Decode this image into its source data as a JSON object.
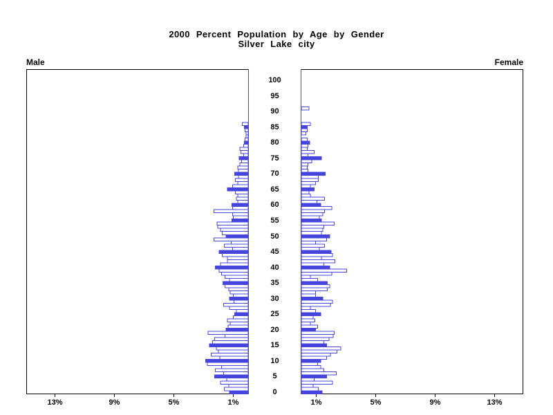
{
  "title": {
    "line1": "2000 Percent Population by Age by Gender",
    "line2": "Silver Lake city"
  },
  "panels": {
    "left_label": "Male",
    "right_label": "Female"
  },
  "colors": {
    "bar_blue": "#4545dd",
    "bar_hollow_fill": "#ffffff",
    "box_border": "#000000",
    "text": "#000000"
  },
  "chart_data": {
    "type": "bar",
    "subtype": "population-pyramid",
    "title": "2000 Percent Population by Age by Gender",
    "subtitle": "Silver Lake city",
    "age_min": 0,
    "age_max": 100,
    "age_step": 1,
    "age_tick_interval": 5,
    "age_tick_labels": [
      "0",
      "5",
      "10",
      "15",
      "20",
      "25",
      "30",
      "35",
      "40",
      "45",
      "50",
      "55",
      "60",
      "65",
      "70",
      "75",
      "80",
      "85",
      "90",
      "95",
      "100"
    ],
    "x_axis": {
      "unit": "percent",
      "tick_values": [
        1,
        5,
        9,
        13
      ],
      "tick_labels": [
        "1%",
        "5%",
        "9%",
        "13%"
      ],
      "max": 15,
      "grid": false
    },
    "fill_rule": "ages divisible by 5 are solid filled, others hollow with blue outline",
    "legend": "none",
    "series": [
      {
        "name": "Male",
        "side": "left",
        "values_pct_by_age": [
          1.25,
          1.6,
          1.3,
          1.85,
          1.45,
          2.25,
          1.65,
          2.2,
          1.8,
          2.75,
          2.85,
          1.9,
          2.5,
          2.0,
          2.15,
          2.6,
          2.4,
          2.25,
          1.55,
          2.7,
          1.5,
          1.35,
          1.2,
          1.4,
          1.0,
          0.9,
          0.8,
          1.25,
          1.65,
          0.95,
          1.25,
          1.0,
          1.2,
          1.3,
          1.55,
          1.7,
          1.25,
          1.55,
          1.8,
          1.95,
          2.2,
          1.85,
          1.4,
          1.4,
          1.75,
          1.95,
          1.05,
          1.6,
          1.15,
          2.3,
          1.5,
          1.75,
          1.85,
          2.05,
          2.1,
          1.1,
          1.0,
          1.05,
          2.3,
          1.05,
          1.1,
          0.7,
          0.8,
          0.7,
          0.85,
          1.4,
          1.05,
          0.7,
          0.85,
          0.65,
          0.9,
          0.65,
          0.7,
          0.55,
          0.45,
          0.6,
          0.3,
          0.5,
          0.55,
          0.3,
          0.25,
          0.2,
          0.15,
          0.15,
          0.2,
          0.25,
          0.4,
          0,
          0,
          0,
          0,
          0,
          0,
          0,
          0,
          0,
          0,
          0,
          0,
          0,
          0
        ]
      },
      {
        "name": "Female",
        "side": "right",
        "values_pct_by_age": [
          1.4,
          1.15,
          0.8,
          2.1,
          0.85,
          1.7,
          2.35,
          1.5,
          1.3,
          1.1,
          1.3,
          1.7,
          1.95,
          2.4,
          2.65,
          1.7,
          1.5,
          1.85,
          2.15,
          2.2,
          0.95,
          1.1,
          0.6,
          0.9,
          0.8,
          1.3,
          0.95,
          0.6,
          1.95,
          2.1,
          1.45,
          0.95,
          0.95,
          1.75,
          1.9,
          1.75,
          1.1,
          0.6,
          2.05,
          3.05,
          1.9,
          1.5,
          2.25,
          1.35,
          2.1,
          2.0,
          1.2,
          1.55,
          0.95,
          1.7,
          1.9,
          1.35,
          1.45,
          1.5,
          2.2,
          1.35,
          1.2,
          1.45,
          1.55,
          2.05,
          1.3,
          1.05,
          1.55,
          0.6,
          0.5,
          0.85,
          0.6,
          0.95,
          1.15,
          1.15,
          1.6,
          0.45,
          0.4,
          0.45,
          0.7,
          1.35,
          0.45,
          0.85,
          0.4,
          0.45,
          0.55,
          0.4,
          0,
          0.3,
          0.4,
          0.4,
          0.6,
          0,
          0,
          0,
          0,
          0.5,
          0,
          0,
          0,
          0,
          0,
          0,
          0,
          0,
          0
        ]
      }
    ]
  }
}
